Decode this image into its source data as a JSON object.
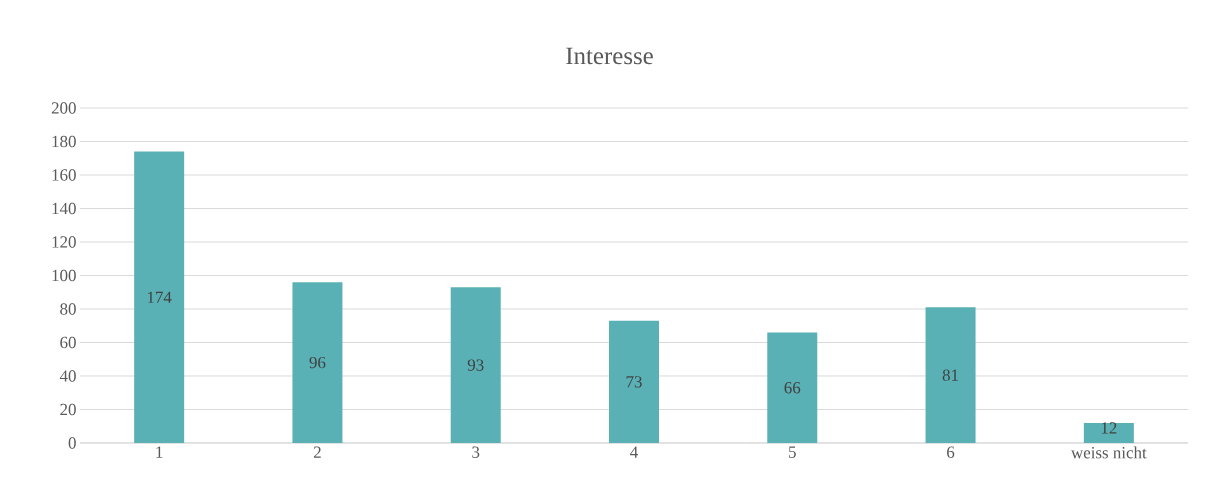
{
  "chart_data": {
    "type": "bar",
    "title": "Interesse",
    "categories": [
      "1",
      "2",
      "3",
      "4",
      "5",
      "6",
      "weiss nicht"
    ],
    "values": [
      174,
      96,
      93,
      73,
      66,
      81,
      12
    ],
    "color": "#5ab1b5",
    "ylim": [
      0,
      200
    ],
    "yticks": [
      0,
      20,
      40,
      60,
      80,
      100,
      120,
      140,
      160,
      180,
      200
    ],
    "grid": "y",
    "data_labels": true
  }
}
